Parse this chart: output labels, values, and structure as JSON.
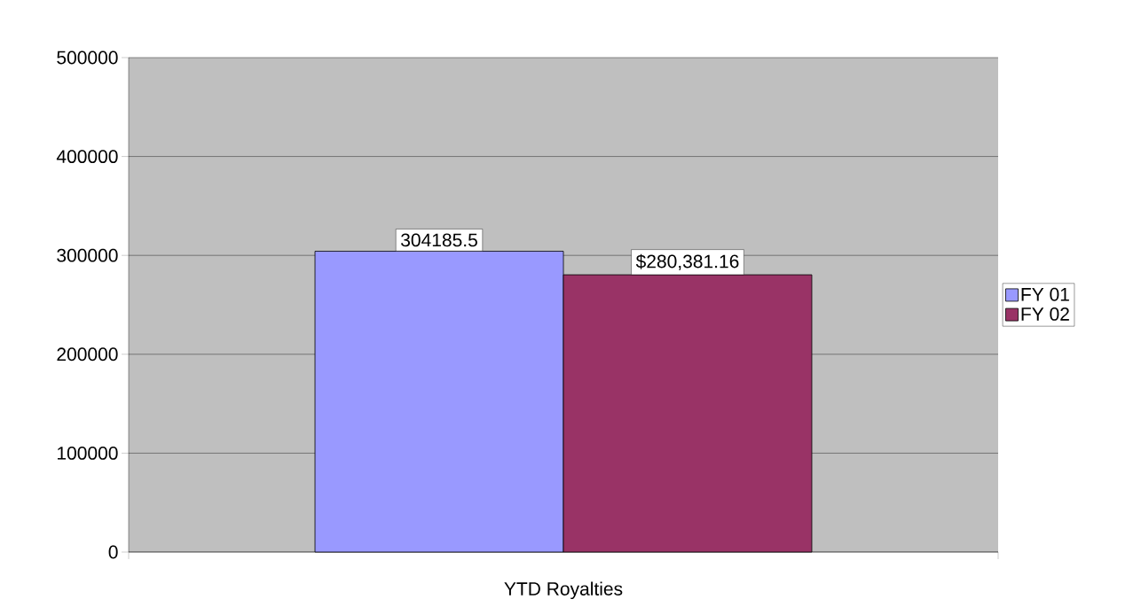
{
  "chart_data": {
    "type": "bar",
    "categories": [
      "YTD Royalties"
    ],
    "series": [
      {
        "name": "FY 01",
        "color": "#9999ff",
        "values": [
          304185.5
        ],
        "value_labels": [
          "304185.5"
        ]
      },
      {
        "name": "FY 02",
        "color": "#993366",
        "values": [
          280381.16
        ],
        "value_labels": [
          "$280,381.16"
        ]
      }
    ],
    "ylim": [
      0,
      500000
    ],
    "yticks": [
      0,
      100000,
      200000,
      300000,
      400000,
      500000
    ],
    "grid": "y",
    "legend": "right"
  }
}
